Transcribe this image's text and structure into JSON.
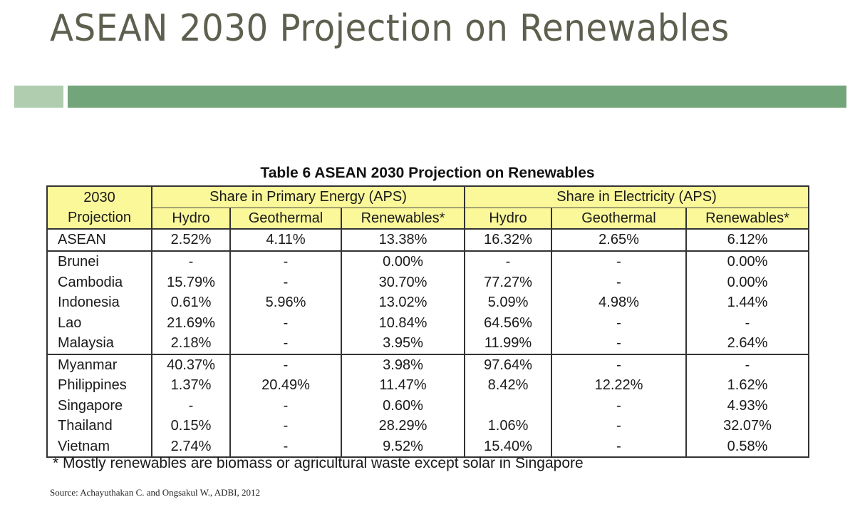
{
  "slide": {
    "title": "ASEAN 2030 Projection on Renewables"
  },
  "colors": {
    "title": "#5f5f4f",
    "accent_light": "#b1cdb0",
    "accent_dark": "#73a57a",
    "table_header": "#fbf89a"
  },
  "table": {
    "caption": "Table 6 ASEAN 2030 Projection on Renewables",
    "corner_header_line1": "2030",
    "corner_header_line2": "Projection",
    "groups": [
      {
        "label": "Share in Primary Energy (APS)"
      },
      {
        "label": "Share in Electricity (APS)"
      }
    ],
    "columns": [
      "Hydro",
      "Geothermal",
      "Renewables*",
      "Hydro",
      "Geothermal",
      "Renewables*"
    ],
    "total_row": {
      "name": "ASEAN",
      "values": [
        "2.52%",
        "4.11%",
        "13.38%",
        "16.32%",
        "2.65%",
        "6.12%"
      ]
    },
    "rows": [
      {
        "name": "Brunei",
        "values": [
          "-",
          "-",
          "0.00%",
          "-",
          "-",
          "0.00%"
        ]
      },
      {
        "name": "Cambodia",
        "values": [
          "15.79%",
          "-",
          "30.70%",
          "77.27%",
          "-",
          "0.00%"
        ]
      },
      {
        "name": "Indonesia",
        "values": [
          "0.61%",
          "5.96%",
          "13.02%",
          "5.09%",
          "4.98%",
          "1.44%"
        ]
      },
      {
        "name": "Lao",
        "values": [
          "21.69%",
          "-",
          "10.84%",
          "64.56%",
          "-",
          "-"
        ]
      },
      {
        "name": "Malaysia",
        "values": [
          "2.18%",
          "-",
          "3.95%",
          "11.99%",
          "-",
          "2.64%"
        ]
      },
      {
        "name": "Myanmar",
        "values": [
          "40.37%",
          "-",
          "3.98%",
          "97.64%",
          "-",
          "-"
        ]
      },
      {
        "name": "Philippines",
        "values": [
          "1.37%",
          "20.49%",
          "11.47%",
          "8.42%",
          "12.22%",
          "1.62%"
        ]
      },
      {
        "name": "Singapore",
        "values": [
          "-",
          "-",
          "0.60%",
          "",
          "-",
          "4.93%"
        ]
      },
      {
        "name": "Thailand",
        "values": [
          "0.15%",
          "-",
          "28.29%",
          "1.06%",
          "-",
          "32.07%"
        ]
      },
      {
        "name": "Vietnam",
        "values": [
          "2.74%",
          "-",
          "9.52%",
          "15.40%",
          "-",
          "0.58%"
        ]
      }
    ],
    "footnote": "* Mostly renewables are biomass or agricultural waste except solar in Singapore"
  },
  "source": "Source: Achayuthakan C. and Ongsakul W., ADBI, 2012"
}
